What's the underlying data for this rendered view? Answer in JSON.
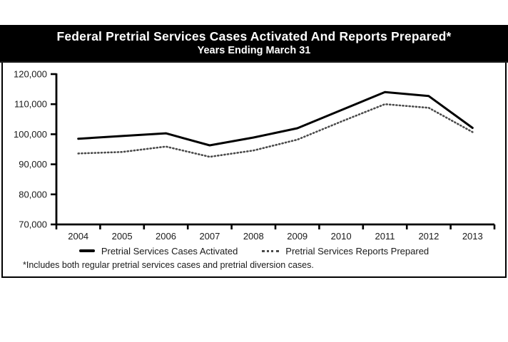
{
  "header": {
    "title": "Federal Pretrial Services Cases Activated And Reports Prepared*",
    "subtitle": "Years Ending March 31"
  },
  "chart_data": {
    "type": "line",
    "title": "Federal Pretrial Services Cases Activated And Reports Prepared*",
    "subtitle": "Years Ending March 31",
    "categories": [
      "2004",
      "2005",
      "2006",
      "2007",
      "2008",
      "2009",
      "2010",
      "2011",
      "2012",
      "2013"
    ],
    "series": [
      {
        "name": "Pretrial Services Cases Activated",
        "style": "solid",
        "color": "#000000",
        "values": [
          98500,
          99400,
          100300,
          96300,
          98900,
          102000,
          108000,
          114000,
          112700,
          102100
        ]
      },
      {
        "name": "Pretrial Services Reports Prepared",
        "style": "dotted",
        "color": "#4a4a4a",
        "values": [
          93600,
          94100,
          95900,
          92500,
          94600,
          98200,
          104200,
          110000,
          108800,
          100700
        ]
      }
    ],
    "xlabel": "",
    "ylabel": "",
    "ylim": [
      70000,
      120000
    ],
    "y_ticks": [
      {
        "value": 70000,
        "label": "70,000"
      },
      {
        "value": 80000,
        "label": "80,000"
      },
      {
        "value": 90000,
        "label": "90,000"
      },
      {
        "value": 100000,
        "label": "100,000"
      },
      {
        "value": 110000,
        "label": "110,000"
      },
      {
        "value": 120000,
        "label": "120,000"
      }
    ],
    "grid": false,
    "legend_position": "bottom"
  },
  "footnote": "*Includes both regular pretrial services cases and pretrial diversion cases.",
  "colors": {
    "title_bar_bg": "#000000",
    "title_text": "#ffffff",
    "axis": "#000000",
    "series_activated": "#000000",
    "series_prepared": "#4a4a4a",
    "panel_border": "#000000"
  }
}
